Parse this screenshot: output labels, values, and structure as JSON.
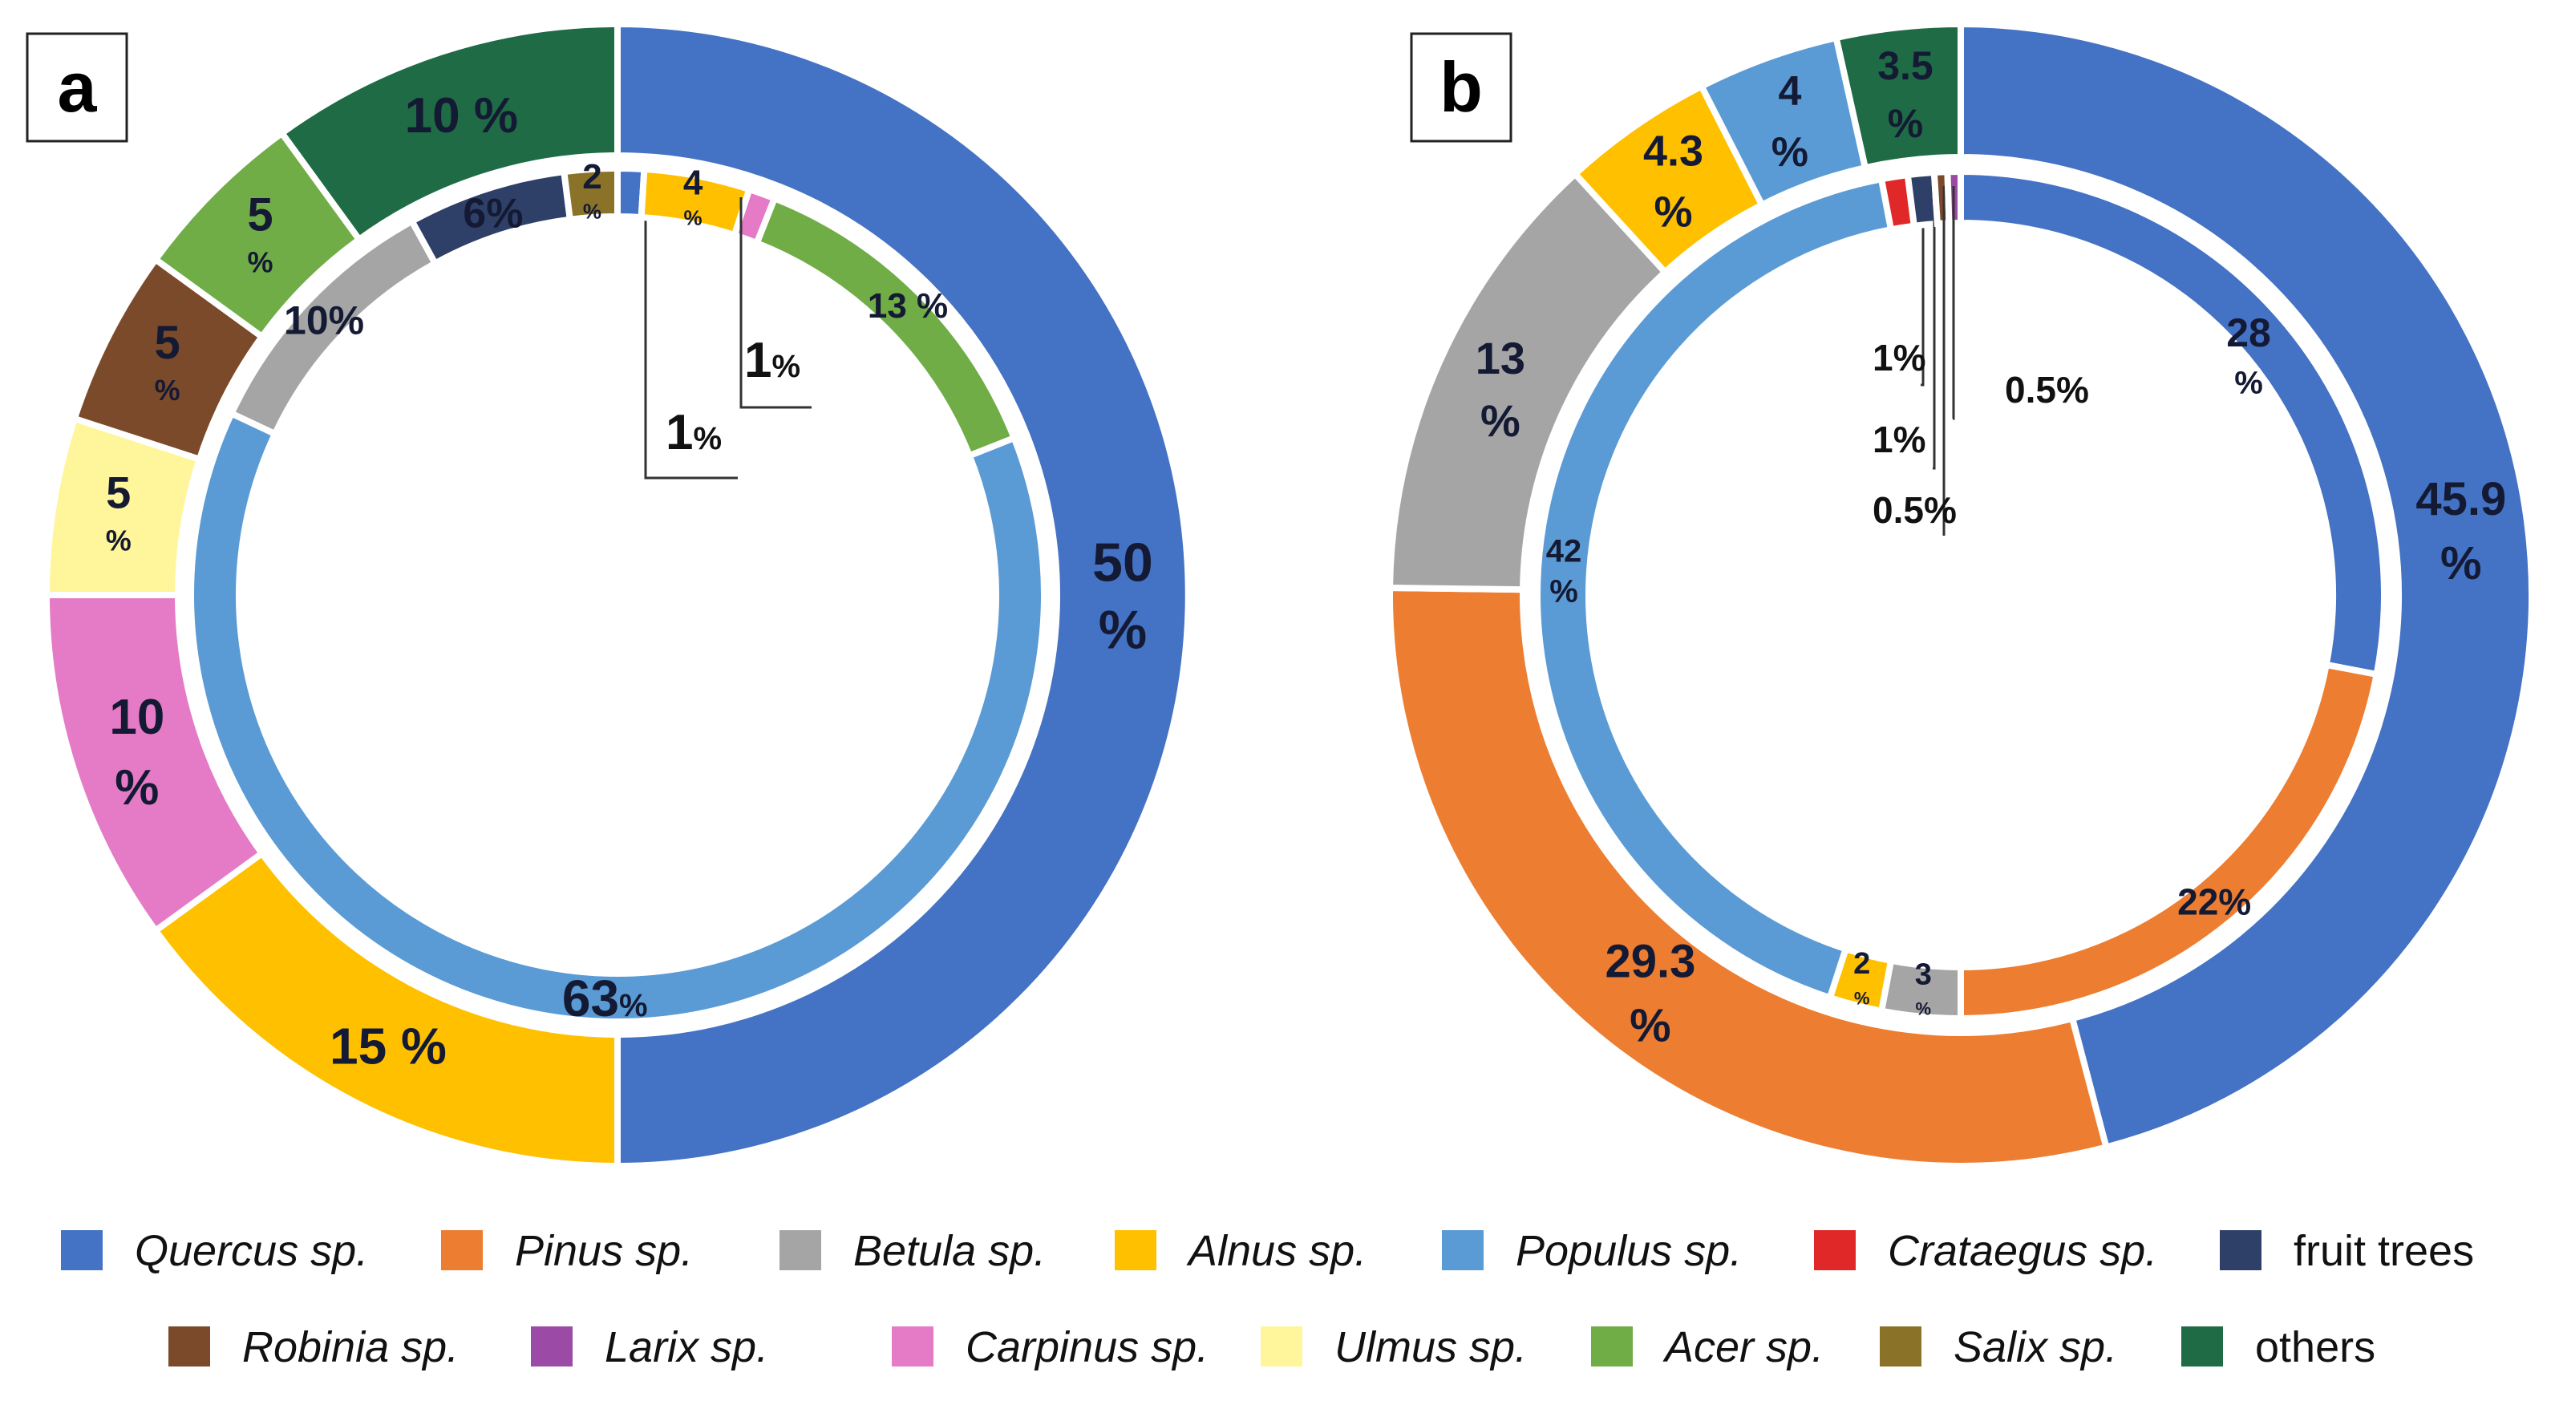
{
  "species": {
    "quercus": {
      "name": "Quercus sp.",
      "color": "#4472C4",
      "italic": true
    },
    "pinus": {
      "name": "Pinus sp.",
      "color": "#ED7D31",
      "italic": true
    },
    "betula": {
      "name": "Betula sp.",
      "color": "#A5A5A5",
      "italic": true
    },
    "alnus": {
      "name": "Alnus sp.",
      "color": "#FFC000",
      "italic": true
    },
    "populus": {
      "name": "Populus sp.",
      "color": "#5B9BD5",
      "italic": true
    },
    "crataegus": {
      "name": "Crataegus sp.",
      "color": "#E02828",
      "italic": true
    },
    "fruit": {
      "name": "fruit trees",
      "color": "#2E4068",
      "italic": false
    },
    "robinia": {
      "name": "Robinia sp.",
      "color": "#7B4A2A",
      "italic": true
    },
    "larix": {
      "name": "Larix sp.",
      "color": "#9B4AA6",
      "italic": true
    },
    "carpinus": {
      "name": "Carpinus sp.",
      "color": "#E57AC6",
      "italic": true
    },
    "ulmus": {
      "name": "Ulmus sp.",
      "color": "#FFF59A",
      "italic": true
    },
    "acer": {
      "name": "Acer sp.",
      "color": "#70AD47",
      "italic": true
    },
    "salix": {
      "name": "Salix sp.",
      "color": "#8A7228",
      "italic": true
    },
    "others": {
      "name": "others",
      "color": "#1E6B45",
      "italic": false
    }
  },
  "legend_rows": [
    [
      "quercus",
      "pinus",
      "betula",
      "alnus",
      "populus",
      "crataegus",
      "fruit"
    ],
    [
      "robinia",
      "larix",
      "carpinus",
      "ulmus",
      "acer",
      "salix",
      "others"
    ]
  ],
  "chart_data": [
    {
      "type": "pie",
      "panel_label": "a",
      "series": [
        {
          "ring": "outer",
          "slices": [
            {
              "species": "quercus",
              "value": 50,
              "label": [
                "50",
                "%"
              ]
            },
            {
              "species": "alnus",
              "value": 15,
              "label": [
                "15 %"
              ]
            },
            {
              "species": "carpinus",
              "value": 10,
              "label": [
                "10",
                "%"
              ]
            },
            {
              "species": "ulmus",
              "value": 5,
              "label": [
                "5",
                "%"
              ]
            },
            {
              "species": "robinia",
              "value": 5,
              "label": [
                "5",
                "%"
              ]
            },
            {
              "species": "acer",
              "value": 5,
              "label": [
                "5",
                "%"
              ]
            },
            {
              "species": "others",
              "value": 10,
              "label": [
                "10 %"
              ]
            }
          ]
        },
        {
          "ring": "inner",
          "slices": [
            {
              "species": "quercus",
              "value": 1,
              "label": [
                "1",
                "%"
              ]
            },
            {
              "species": "alnus",
              "value": 4,
              "label": [
                "4",
                "%"
              ]
            },
            {
              "species": "carpinus",
              "value": 1,
              "label": [
                "1",
                "%"
              ]
            },
            {
              "species": "acer",
              "value": 13,
              "label": [
                "13 %"
              ]
            },
            {
              "species": "populus",
              "value": 63,
              "label": [
                "63",
                "%"
              ]
            },
            {
              "species": "betula",
              "value": 10,
              "label": [
                "10%"
              ]
            },
            {
              "species": "fruit",
              "value": 6,
              "label": [
                "6%"
              ]
            },
            {
              "species": "salix",
              "value": 2,
              "label": [
                "2",
                "%"
              ]
            }
          ]
        }
      ]
    },
    {
      "type": "pie",
      "panel_label": "b",
      "series": [
        {
          "ring": "outer",
          "slices": [
            {
              "species": "quercus",
              "value": 45.9,
              "label": [
                "45.9",
                "%"
              ]
            },
            {
              "species": "pinus",
              "value": 29.3,
              "label": [
                "29.3",
                "%"
              ]
            },
            {
              "species": "betula",
              "value": 13,
              "label": [
                "13",
                "%"
              ]
            },
            {
              "species": "alnus",
              "value": 4.3,
              "label": [
                "4.3",
                "%"
              ]
            },
            {
              "species": "populus",
              "value": 4,
              "label": [
                "4",
                "%"
              ]
            },
            {
              "species": "others",
              "value": 3.5,
              "label": [
                "3.5",
                "%"
              ]
            }
          ]
        },
        {
          "ring": "inner",
          "slices": [
            {
              "species": "quercus",
              "value": 28,
              "label": [
                "28",
                "%"
              ]
            },
            {
              "species": "pinus",
              "value": 22,
              "label": [
                "22%"
              ]
            },
            {
              "species": "betula",
              "value": 3,
              "label": [
                "3",
                "%"
              ]
            },
            {
              "species": "alnus",
              "value": 2,
              "label": [
                "2",
                "%"
              ]
            },
            {
              "species": "populus",
              "value": 42,
              "label": [
                "42",
                "%"
              ]
            },
            {
              "species": "crataegus",
              "value": 1,
              "label": [
                "1%"
              ]
            },
            {
              "species": "fruit",
              "value": 1,
              "label": [
                "1%"
              ]
            },
            {
              "species": "robinia",
              "value": 0.5,
              "label": [
                "0.5%"
              ]
            },
            {
              "species": "larix",
              "value": 0.5,
              "label": [
                "0.5%"
              ]
            }
          ]
        }
      ]
    }
  ]
}
